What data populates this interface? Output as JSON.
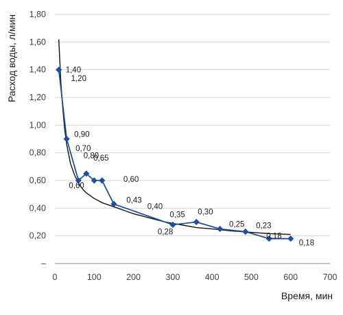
{
  "chart_data": {
    "type": "line",
    "xlabel": "Время, мин",
    "ylabel": "Расход воды, л/мин",
    "xlim": [
      0,
      700
    ],
    "ylim": [
      0,
      1.8
    ],
    "x_ticks": [
      "0",
      "100",
      "200",
      "300",
      "400",
      "500",
      "600",
      "700"
    ],
    "y_ticks": [
      "–",
      "0,20",
      "0,40",
      "0,60",
      "0,80",
      "1,00",
      "1,20",
      "1,40",
      "1,60",
      "1,80"
    ],
    "grid": "horizontal",
    "series": [
      {
        "x": [
          10,
          30,
          60,
          80,
          100,
          120,
          150,
          300,
          360,
          420,
          485,
          545,
          600
        ],
        "y": [
          1.4,
          0.9,
          0.6,
          0.65,
          0.6,
          0.6,
          0.43,
          0.28,
          0.3,
          0.25,
          0.23,
          0.18,
          0.18
        ],
        "color": "#1f4e9a",
        "marker": "diamond"
      },
      {
        "type": "trendline",
        "color": "#111111",
        "x": [
          10,
          15,
          20,
          25,
          30,
          40,
          50,
          60,
          70,
          80,
          90,
          100,
          120,
          140,
          160,
          180,
          200,
          240,
          280,
          320,
          360,
          400,
          450,
          500,
          550,
          600
        ],
        "y": [
          1.62,
          1.32,
          1.12,
          0.97,
          0.86,
          0.72,
          0.64,
          0.58,
          0.54,
          0.51,
          0.49,
          0.47,
          0.44,
          0.42,
          0.4,
          0.38,
          0.36,
          0.33,
          0.3,
          0.28,
          0.26,
          0.25,
          0.235,
          0.225,
          0.215,
          0.21
        ]
      }
    ],
    "data_labels": [
      {
        "text": "1,40",
        "x": 10,
        "y": 1.4
      },
      {
        "text": "1,20",
        "x": 22,
        "y": 1.2
      },
      {
        "text": "0,90",
        "x": 30,
        "y": 0.9
      },
      {
        "text": "0,80",
        "x": 52,
        "y": 0.8
      },
      {
        "text": "0,60",
        "x": 60,
        "y": 0.6
      },
      {
        "text": "0,70",
        "x": 70,
        "y": 0.7
      },
      {
        "text": "0,65",
        "x": 105,
        "y": 0.65
      },
      {
        "text": "0,60",
        "x": 150,
        "y": 0.6
      },
      {
        "text": "0,43",
        "x": 175,
        "y": 0.43
      },
      {
        "text": "0,40",
        "x": 230,
        "y": 0.4
      },
      {
        "text": "0,35",
        "x": 280,
        "y": 0.35
      },
      {
        "text": "0,28",
        "x": 300,
        "y": 0.28
      },
      {
        "text": "0,30",
        "x": 360,
        "y": 0.3
      },
      {
        "text": "0,25",
        "x": 440,
        "y": 0.25
      },
      {
        "text": "0,23",
        "x": 510,
        "y": 0.23
      },
      {
        "text": "0,18",
        "x": 545,
        "y": 0.18
      },
      {
        "text": "0,18",
        "x": 600,
        "y": 0.18
      }
    ]
  }
}
